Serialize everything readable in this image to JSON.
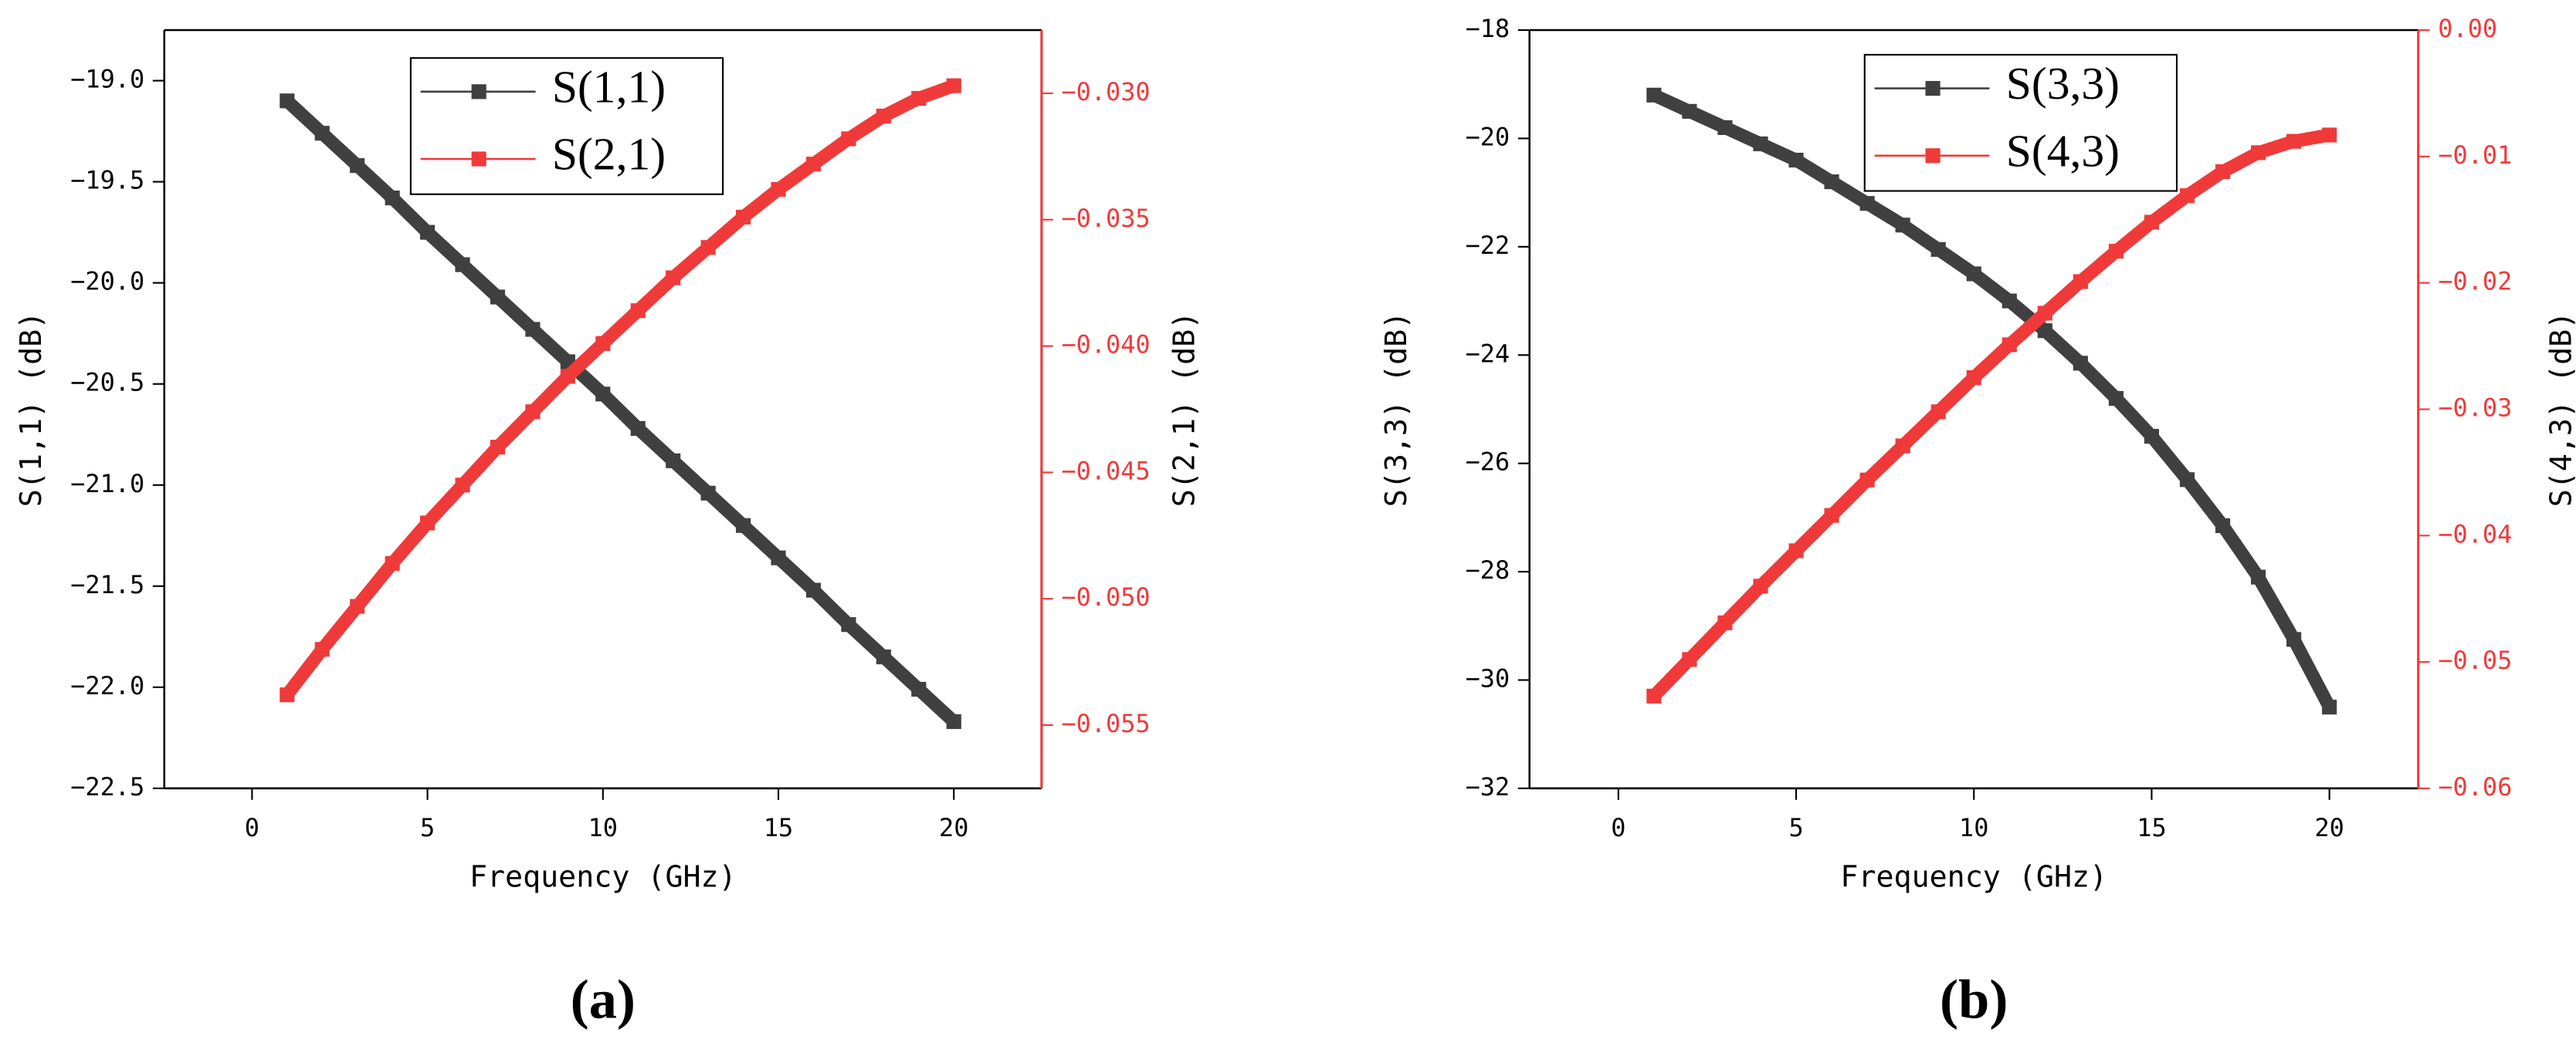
{
  "chart_data": [
    {
      "type": "line",
      "caption": "(a)",
      "xlabel": "Frequency (GHz)",
      "ylabel": "S(1,1) (dB)",
      "y2label": "S(2,1) (dB)",
      "x": [
        1,
        2,
        3,
        4,
        5,
        6,
        7,
        8,
        9,
        10,
        11,
        12,
        13,
        14,
        15,
        16,
        17,
        18,
        19,
        20
      ],
      "series": [
        {
          "name": "S(1,1)",
          "color": "#404040",
          "values": [
            -19.1,
            -19.26,
            -19.42,
            -19.58,
            -19.75,
            -19.91,
            -20.07,
            -20.23,
            -20.39,
            -20.55,
            -20.72,
            -20.88,
            -21.04,
            -21.2,
            -21.36,
            -21.52,
            -21.69,
            -21.85,
            -22.01,
            -22.17
          ]
        },
        {
          "name": "S(2,1)",
          "color": "#f03a3a",
          "axis": "y2",
          "values": [
            -0.0538,
            -0.052,
            -0.0503,
            -0.0486,
            -0.047,
            -0.0455,
            -0.044,
            -0.0426,
            -0.0412,
            -0.0399,
            -0.0386,
            -0.0373,
            -0.0361,
            -0.0349,
            -0.0338,
            -0.0328,
            -0.0318,
            -0.0309,
            -0.0302,
            -0.0297
          ]
        }
      ],
      "xlim": [
        -2.5,
        22.5
      ],
      "xticks": [
        0,
        5,
        10,
        15,
        20
      ],
      "ylim": [
        -22.5,
        -18.75
      ],
      "yticks": [
        {
          "value": -22.5,
          "label": "−22.5"
        },
        {
          "value": -22,
          "label": "−22.0"
        },
        {
          "value": -21.5,
          "label": "−21.5"
        },
        {
          "value": -21,
          "label": "−21.0"
        },
        {
          "value": -20.5,
          "label": "−20.5"
        },
        {
          "value": -20,
          "label": "−20.0"
        },
        {
          "value": -19.5,
          "label": "−19.5"
        },
        {
          "value": -19,
          "label": "−19.0"
        }
      ],
      "y2lim": [
        -0.0575,
        -0.0275
      ],
      "y2ticks": [
        {
          "value": -0.055,
          "label": "−0.055"
        },
        {
          "value": -0.05,
          "label": "−0.050"
        },
        {
          "value": -0.045,
          "label": "−0.045"
        },
        {
          "value": -0.04,
          "label": "−0.040"
        },
        {
          "value": -0.035,
          "label": "−0.035"
        },
        {
          "value": -0.03,
          "label": "−0.030"
        }
      ],
      "legend": "top-center"
    },
    {
      "type": "line",
      "caption": "(b)",
      "xlabel": "Frequency (GHz)",
      "ylabel": "S(3,3) (dB)",
      "y2label": "S(4,3) (dB)",
      "x": [
        1,
        2,
        3,
        4,
        5,
        6,
        7,
        8,
        9,
        10,
        11,
        12,
        13,
        14,
        15,
        16,
        17,
        18,
        19,
        20
      ],
      "series": [
        {
          "name": "S(3,3)",
          "color": "#404040",
          "values": [
            -19.2,
            -19.5,
            -19.8,
            -20.1,
            -20.4,
            -20.8,
            -21.2,
            -21.6,
            -22.05,
            -22.5,
            -23.0,
            -23.55,
            -24.15,
            -24.8,
            -25.5,
            -26.3,
            -27.15,
            -28.1,
            -29.25,
            -30.5
          ]
        },
        {
          "name": "S(4,3)",
          "color": "#f03a3a",
          "axis": "y2",
          "values": [
            -0.0527,
            -0.0498,
            -0.0469,
            -0.044,
            -0.0412,
            -0.0384,
            -0.0356,
            -0.0329,
            -0.0302,
            -0.0275,
            -0.0249,
            -0.0224,
            -0.0199,
            -0.0175,
            -0.0152,
            -0.0131,
            -0.0112,
            -0.0097,
            -0.0088,
            -0.0083
          ]
        }
      ],
      "xlim": [
        -2.5,
        22.5
      ],
      "xticks": [
        0,
        5,
        10,
        15,
        20
      ],
      "ylim": [
        -32,
        -18
      ],
      "yticks": [
        {
          "value": -32,
          "label": "−32"
        },
        {
          "value": -30,
          "label": "−30"
        },
        {
          "value": -28,
          "label": "−28"
        },
        {
          "value": -26,
          "label": "−26"
        },
        {
          "value": -24,
          "label": "−24"
        },
        {
          "value": -22,
          "label": "−22"
        },
        {
          "value": -20,
          "label": "−20"
        },
        {
          "value": -18,
          "label": "−18"
        }
      ],
      "y2lim": [
        -0.06,
        0
      ],
      "y2ticks": [
        {
          "value": -0.06,
          "label": "−0.06"
        },
        {
          "value": -0.05,
          "label": "−0.05"
        },
        {
          "value": -0.04,
          "label": "−0.04"
        },
        {
          "value": -0.03,
          "label": "−0.03"
        },
        {
          "value": -0.02,
          "label": "−0.02"
        },
        {
          "value": -0.01,
          "label": "−0.01"
        },
        {
          "value": 0,
          "label": "0.00"
        }
      ],
      "legend": "top-center"
    }
  ]
}
